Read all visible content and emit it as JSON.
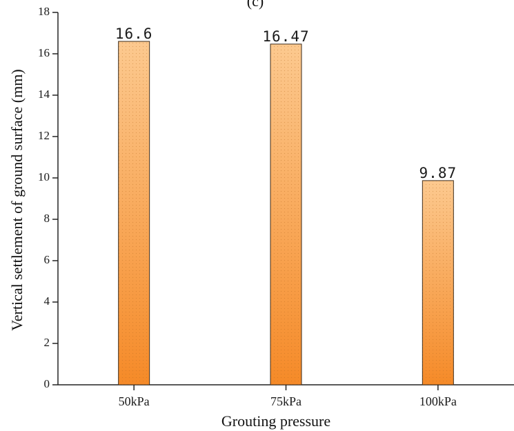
{
  "panel_label": "(c)",
  "colors": {
    "bar_top": "#fcc98f",
    "bar_bottom": "#f58a28",
    "bar_stroke": "#3a2a1a",
    "axis": "#222222"
  },
  "chart_data": {
    "type": "bar",
    "categories": [
      "50kPa",
      "75kPa",
      "100kPa"
    ],
    "values": [
      16.6,
      16.47,
      9.87
    ],
    "data_labels": [
      "16.6",
      "16.47",
      "9.87"
    ],
    "title": "",
    "xlabel": "Grouting pressure",
    "ylabel": "Vertical settlement of ground surface (mm)",
    "ylim": [
      0,
      18
    ],
    "yticks": [
      0,
      2,
      4,
      6,
      8,
      10,
      12,
      14,
      16,
      18
    ],
    "grid": false,
    "legend": "none"
  }
}
